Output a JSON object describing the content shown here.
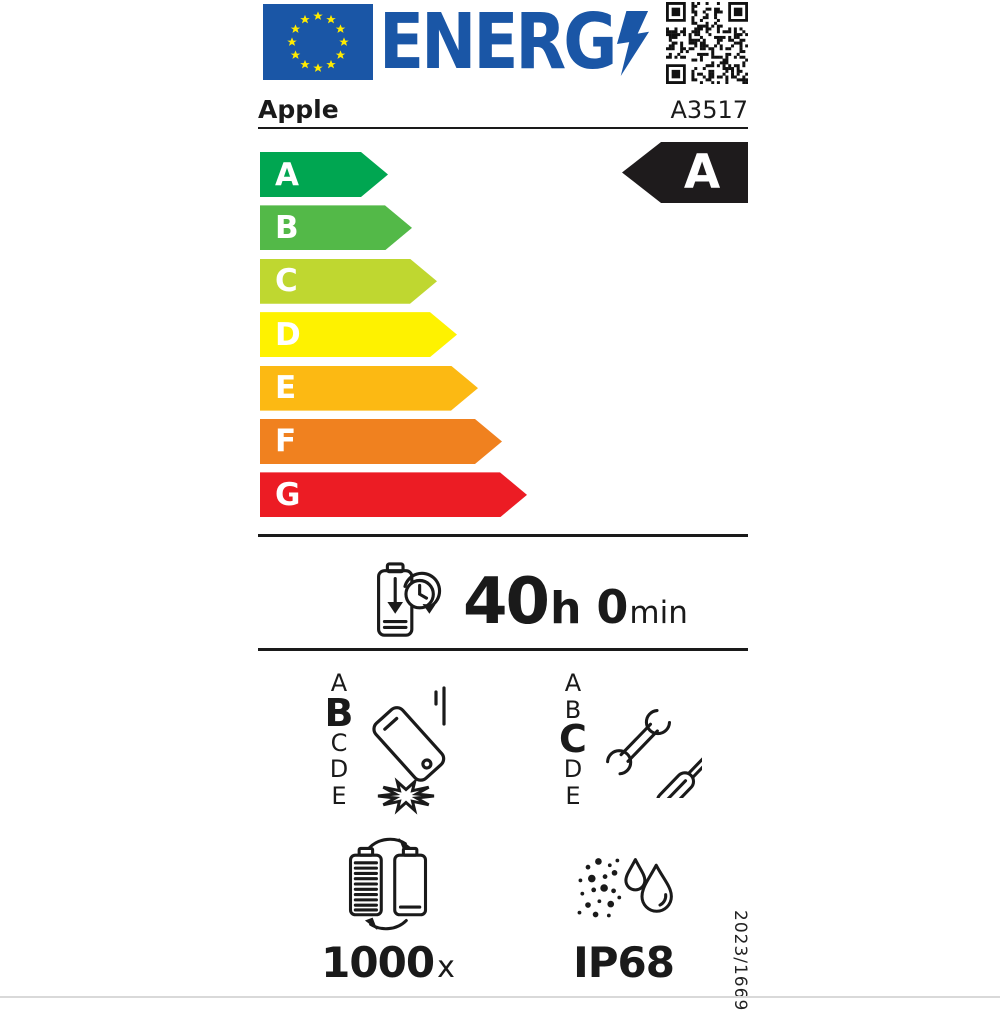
{
  "header": {
    "logo_text": "ENERG",
    "colors": {
      "logo_blue": "#1A56A6",
      "flag_blue": "#1A56A6",
      "star_yellow": "#FFEB00"
    }
  },
  "product": {
    "brand": "Apple",
    "model": "A3517"
  },
  "energy_scale": {
    "rating": "A",
    "rating_bg": "#1E1B1C",
    "classes": [
      {
        "label": "A",
        "color": "#00A651"
      },
      {
        "label": "B",
        "color": "#53B948"
      },
      {
        "label": "C",
        "color": "#BFD730"
      },
      {
        "label": "D",
        "color": "#FEF200"
      },
      {
        "label": "E",
        "color": "#FCB913"
      },
      {
        "label": "F",
        "color": "#F0811F"
      },
      {
        "label": "G",
        "color": "#EC1C24"
      }
    ]
  },
  "battery_endurance": {
    "hours": "40",
    "hours_unit": "h",
    "minutes": "0",
    "minutes_unit": "min"
  },
  "sections": {
    "drop_resistance": {
      "scale": [
        "A",
        "B",
        "C",
        "D",
        "E"
      ],
      "rating": "B"
    },
    "repairability": {
      "scale": [
        "A",
        "B",
        "C",
        "D",
        "E"
      ],
      "rating": "C"
    },
    "battery_cycles": {
      "value": "1000",
      "unit": "x"
    },
    "ingress_protection": {
      "value": "IP68"
    }
  },
  "footer": {
    "regulation": "2023/1669"
  },
  "icons": [
    "eu-flag-icon",
    "energy-lightning-icon",
    "qr-code",
    "battery-clock-icon",
    "phone-drop-icon",
    "tools-icon",
    "battery-cycle-icon",
    "dust-water-icon"
  ]
}
